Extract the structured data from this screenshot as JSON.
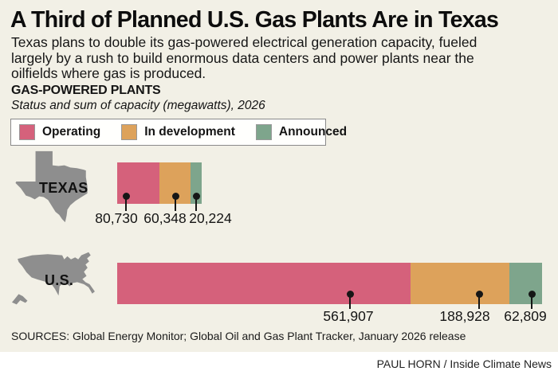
{
  "header": {
    "title": "A Third of Planned U.S. Gas Plants Are in Texas",
    "subtitle_lines": [
      "Texas plans to double its gas-powered electrical generation capacity, fueled",
      "largely by a rush to build enormous data centers and power plants near the",
      "oilfields where gas is produced."
    ]
  },
  "section": {
    "label": "GAS-POWERED PLANTS",
    "sublabel": "Status and sum of capacity (megawatts), 2026"
  },
  "legend": {
    "items": [
      {
        "label": "Operating",
        "color": "#d5617b"
      },
      {
        "label": "In development",
        "color": "#dda25b"
      },
      {
        "label": "Announced",
        "color": "#7ea58c"
      }
    ]
  },
  "chart_data": {
    "type": "bar",
    "orientation": "horizontal-stacked",
    "unit": "megawatts",
    "year": "2026",
    "series_names": [
      "Operating",
      "In development",
      "Announced"
    ],
    "colors": [
      "#d5617b",
      "#dda25b",
      "#7ea58c"
    ],
    "map_color": "#8e8e8e",
    "background_color": "#f2f0e6",
    "rows": [
      {
        "label": "TEXAS",
        "values": [
          80730,
          60348,
          20224
        ],
        "value_labels": [
          "80,730",
          "60,348",
          "20,224"
        ]
      },
      {
        "label": "U.S.",
        "values": [
          561907,
          188928,
          62809
        ],
        "value_labels": [
          "561,907",
          "188,928",
          "62,809"
        ]
      }
    ],
    "xlim": [
      0,
      813644
    ],
    "grid": false,
    "legend_position": "top-left"
  },
  "footer": {
    "sources": "SOURCES: Global Energy Monitor; Global Oil and Gas Plant Tracker, January 2026 release",
    "credit": "PAUL HORN / Inside Climate News"
  }
}
